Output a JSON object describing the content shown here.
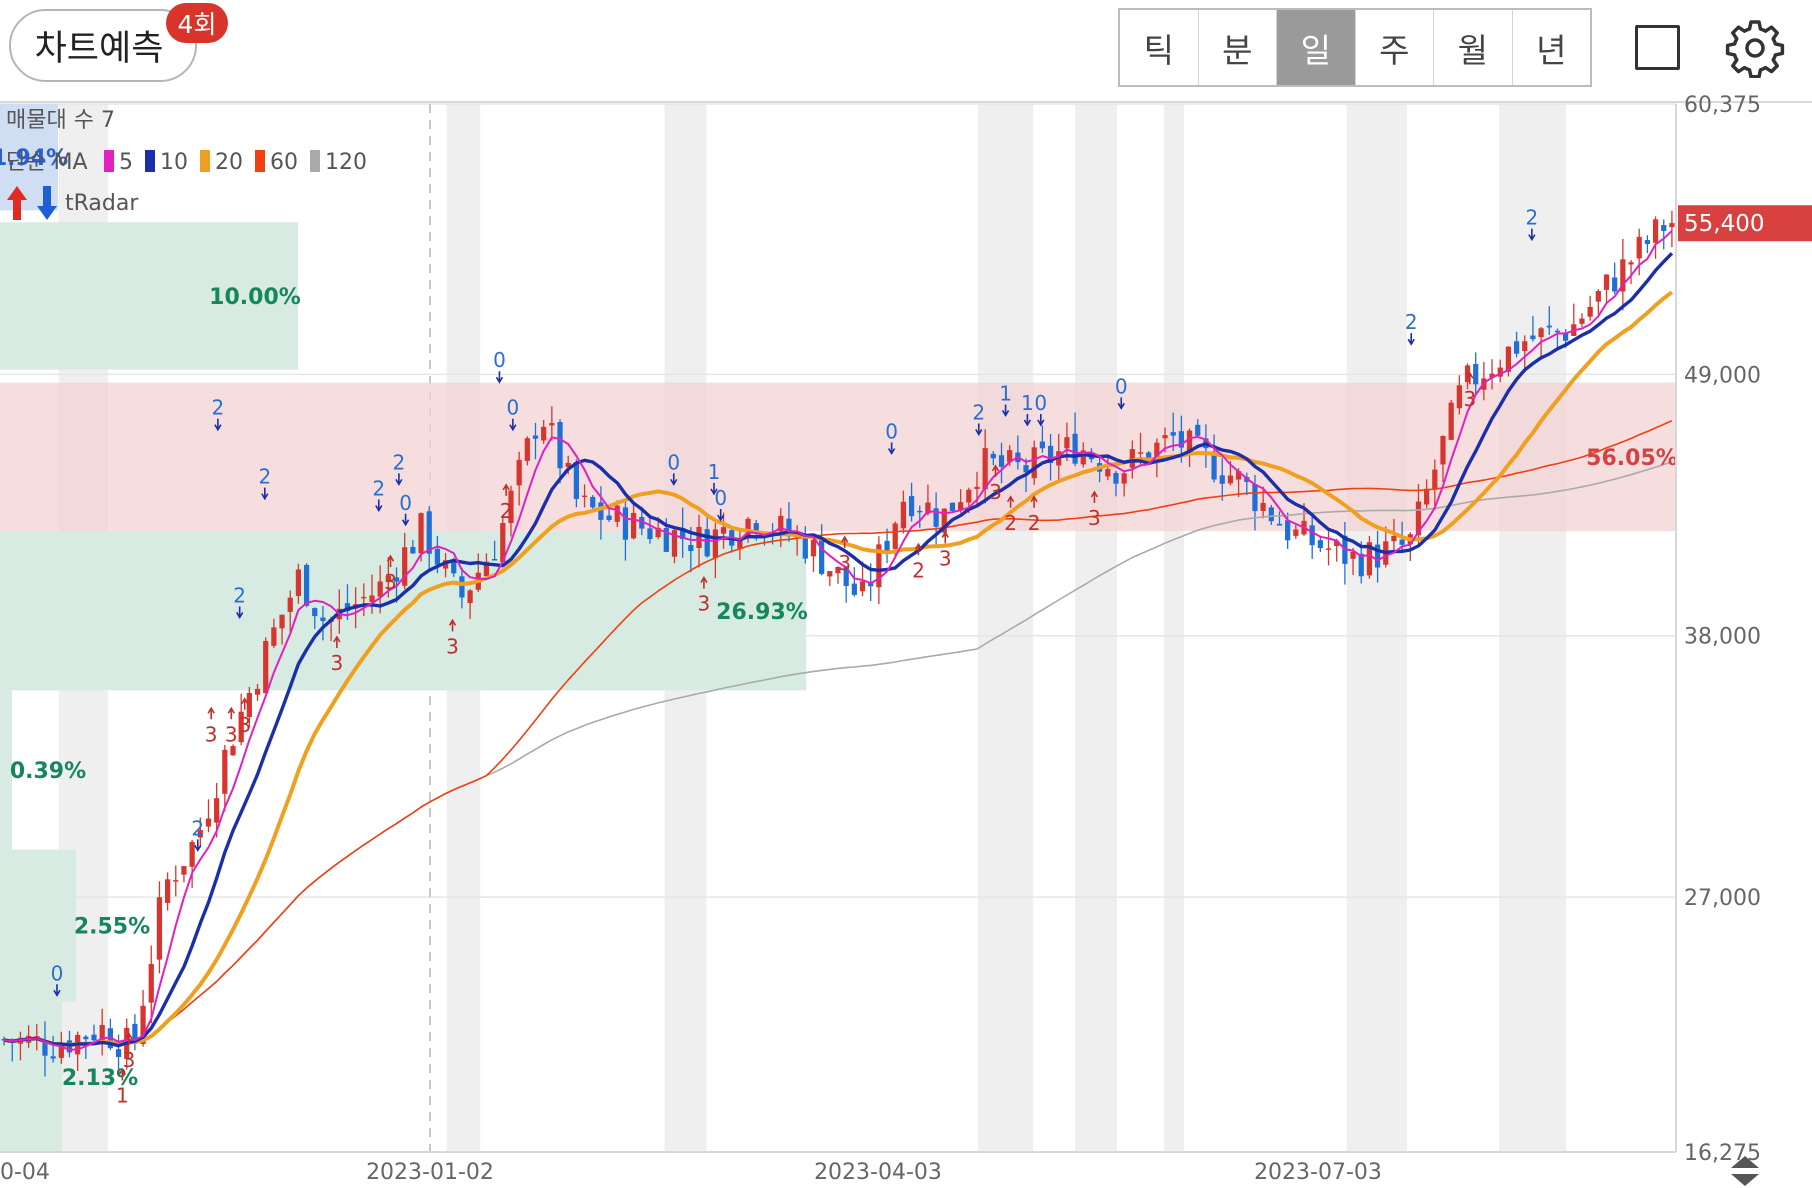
{
  "header": {
    "predict_label": "차트예측",
    "predict_badge": "4회",
    "period_tabs": [
      "틱",
      "분",
      "일",
      "주",
      "월",
      "년"
    ],
    "active_tab": "일",
    "icons": [
      "square-icon",
      "gear-icon"
    ]
  },
  "legend": {
    "volume_profile": "매물대 수 7",
    "ma_type": "단순 MA",
    "ma_items": [
      {
        "label": "5",
        "color": "#e020c0"
      },
      {
        "label": "10",
        "color": "#1a2fa8"
      },
      {
        "label": "20",
        "color": "#f0a020"
      },
      {
        "label": "60",
        "color": "#f04010"
      },
      {
        "label": "120",
        "color": "#aaaaaa"
      }
    ],
    "radar_label": "tRadar"
  },
  "chart_data": {
    "type": "candlestick",
    "y_axis": {
      "ticks": [
        "60,375",
        "49,000",
        "38,000",
        "27,000",
        "16,275"
      ],
      "min": 16275,
      "max": 60375
    },
    "x_axis": {
      "ticks": [
        "0-04",
        "2023-01-02",
        "2023-04-03",
        "2023-07-03"
      ]
    },
    "current_price": {
      "label": "55,400",
      "value": 55400,
      "color": "#d94040"
    },
    "volume_zones": [
      {
        "label": "1.94%",
        "from": 55900,
        "to": 60375,
        "color": "blue"
      },
      {
        "label": "10.00%",
        "from": 49200,
        "to": 55400,
        "color": "green"
      },
      {
        "label": "56.05%",
        "from": 42400,
        "to": 48650,
        "color": "red"
      },
      {
        "label": "26.93%",
        "from": 35700,
        "to": 42400,
        "color": "green"
      },
      {
        "label": "0.39%",
        "from": 29000,
        "to": 35700,
        "color": "green"
      },
      {
        "label": "2.55%",
        "from": 22600,
        "to": 29000,
        "color": "green"
      },
      {
        "label": "2.13%",
        "from": 16275,
        "to": 22600,
        "color": "green"
      }
    ],
    "signals": [
      {
        "label": "0",
        "x_frac": 0.034,
        "price": 23500,
        "type": "sell"
      },
      {
        "label": "1",
        "x_frac": 0.073,
        "price": 19200,
        "type": "buy"
      },
      {
        "label": "3",
        "x_frac": 0.077,
        "price": 20700,
        "type": "buy"
      },
      {
        "label": "2",
        "x_frac": 0.118,
        "price": 29600,
        "type": "sell"
      },
      {
        "label": "3",
        "x_frac": 0.126,
        "price": 34400,
        "type": "buy"
      },
      {
        "label": "3",
        "x_frac": 0.138,
        "price": 34400,
        "type": "buy"
      },
      {
        "label": "3",
        "x_frac": 0.146,
        "price": 34800,
        "type": "buy"
      },
      {
        "label": "2",
        "x_frac": 0.13,
        "price": 47300,
        "type": "sell"
      },
      {
        "label": "2",
        "x_frac": 0.143,
        "price": 39400,
        "type": "sell"
      },
      {
        "label": "2",
        "x_frac": 0.158,
        "price": 44400,
        "type": "sell"
      },
      {
        "label": "3",
        "x_frac": 0.201,
        "price": 37400,
        "type": "buy"
      },
      {
        "label": "2",
        "x_frac": 0.226,
        "price": 43900,
        "type": "sell"
      },
      {
        "label": "2",
        "x_frac": 0.238,
        "price": 45000,
        "type": "sell"
      },
      {
        "label": "0",
        "x_frac": 0.242,
        "price": 43300,
        "type": "sell"
      },
      {
        "label": "3",
        "x_frac": 0.233,
        "price": 40800,
        "type": "buy"
      },
      {
        "label": "3",
        "x_frac": 0.27,
        "price": 38100,
        "type": "buy"
      },
      {
        "label": "0",
        "x_frac": 0.298,
        "price": 49300,
        "type": "sell"
      },
      {
        "label": "0",
        "x_frac": 0.306,
        "price": 47300,
        "type": "sell"
      },
      {
        "label": "2",
        "x_frac": 0.302,
        "price": 43800,
        "type": "buy"
      },
      {
        "label": "0",
        "x_frac": 0.402,
        "price": 45000,
        "type": "sell"
      },
      {
        "label": "1",
        "x_frac": 0.426,
        "price": 44600,
        "type": "sell"
      },
      {
        "label": "0",
        "x_frac": 0.43,
        "price": 43500,
        "type": "sell"
      },
      {
        "label": "3",
        "x_frac": 0.42,
        "price": 39900,
        "type": "buy"
      },
      {
        "label": "3",
        "x_frac": 0.504,
        "price": 41600,
        "type": "buy"
      },
      {
        "label": "0",
        "x_frac": 0.532,
        "price": 46300,
        "type": "sell"
      },
      {
        "label": "2",
        "x_frac": 0.548,
        "price": 41300,
        "type": "buy"
      },
      {
        "label": "3",
        "x_frac": 0.564,
        "price": 41800,
        "type": "buy"
      },
      {
        "label": "2",
        "x_frac": 0.584,
        "price": 47100,
        "type": "sell"
      },
      {
        "label": "1",
        "x_frac": 0.6,
        "price": 47900,
        "type": "sell"
      },
      {
        "label": "1",
        "x_frac": 0.613,
        "price": 47500,
        "type": "sell"
      },
      {
        "label": "0",
        "x_frac": 0.621,
        "price": 47500,
        "type": "sell"
      },
      {
        "label": "3",
        "x_frac": 0.594,
        "price": 44600,
        "type": "buy"
      },
      {
        "label": "2",
        "x_frac": 0.603,
        "price": 43300,
        "type": "buy"
      },
      {
        "label": "2",
        "x_frac": 0.617,
        "price": 43300,
        "type": "buy"
      },
      {
        "label": "3",
        "x_frac": 0.653,
        "price": 43500,
        "type": "buy"
      },
      {
        "label": "0",
        "x_frac": 0.669,
        "price": 48200,
        "type": "sell"
      },
      {
        "label": "2",
        "x_frac": 0.842,
        "price": 50900,
        "type": "sell"
      },
      {
        "label": "3",
        "x_frac": 0.877,
        "price": 48500,
        "type": "buy"
      },
      {
        "label": "2",
        "x_frac": 0.914,
        "price": 55300,
        "type": "sell"
      }
    ]
  }
}
